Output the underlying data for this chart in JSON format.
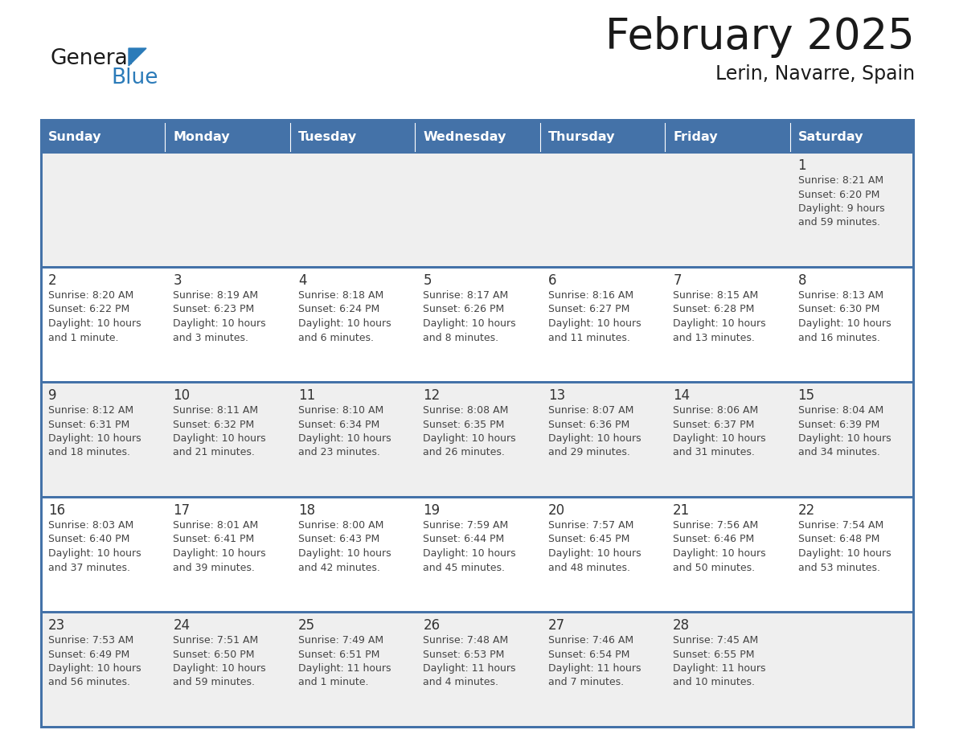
{
  "title": "February 2025",
  "subtitle": "Lerin, Navarre, Spain",
  "days_of_week": [
    "Sunday",
    "Monday",
    "Tuesday",
    "Wednesday",
    "Thursday",
    "Friday",
    "Saturday"
  ],
  "header_bg": "#4472A8",
  "header_text": "#FFFFFF",
  "cell_bg_light": "#EFEFEF",
  "cell_bg_white": "#FFFFFF",
  "cell_border_color": "#4472A8",
  "day_num_color": "#333333",
  "info_text_color": "#444444",
  "calendar_data": [
    [
      null,
      null,
      null,
      null,
      null,
      null,
      {
        "day": "1",
        "sunrise": "8:21 AM",
        "sunset": "6:20 PM",
        "daylight": "9 hours",
        "daylight2": "and 59 minutes."
      }
    ],
    [
      {
        "day": "2",
        "sunrise": "8:20 AM",
        "sunset": "6:22 PM",
        "daylight": "10 hours",
        "daylight2": "and 1 minute."
      },
      {
        "day": "3",
        "sunrise": "8:19 AM",
        "sunset": "6:23 PM",
        "daylight": "10 hours",
        "daylight2": "and 3 minutes."
      },
      {
        "day": "4",
        "sunrise": "8:18 AM",
        "sunset": "6:24 PM",
        "daylight": "10 hours",
        "daylight2": "and 6 minutes."
      },
      {
        "day": "5",
        "sunrise": "8:17 AM",
        "sunset": "6:26 PM",
        "daylight": "10 hours",
        "daylight2": "and 8 minutes."
      },
      {
        "day": "6",
        "sunrise": "8:16 AM",
        "sunset": "6:27 PM",
        "daylight": "10 hours",
        "daylight2": "and 11 minutes."
      },
      {
        "day": "7",
        "sunrise": "8:15 AM",
        "sunset": "6:28 PM",
        "daylight": "10 hours",
        "daylight2": "and 13 minutes."
      },
      {
        "day": "8",
        "sunrise": "8:13 AM",
        "sunset": "6:30 PM",
        "daylight": "10 hours",
        "daylight2": "and 16 minutes."
      }
    ],
    [
      {
        "day": "9",
        "sunrise": "8:12 AM",
        "sunset": "6:31 PM",
        "daylight": "10 hours",
        "daylight2": "and 18 minutes."
      },
      {
        "day": "10",
        "sunrise": "8:11 AM",
        "sunset": "6:32 PM",
        "daylight": "10 hours",
        "daylight2": "and 21 minutes."
      },
      {
        "day": "11",
        "sunrise": "8:10 AM",
        "sunset": "6:34 PM",
        "daylight": "10 hours",
        "daylight2": "and 23 minutes."
      },
      {
        "day": "12",
        "sunrise": "8:08 AM",
        "sunset": "6:35 PM",
        "daylight": "10 hours",
        "daylight2": "and 26 minutes."
      },
      {
        "day": "13",
        "sunrise": "8:07 AM",
        "sunset": "6:36 PM",
        "daylight": "10 hours",
        "daylight2": "and 29 minutes."
      },
      {
        "day": "14",
        "sunrise": "8:06 AM",
        "sunset": "6:37 PM",
        "daylight": "10 hours",
        "daylight2": "and 31 minutes."
      },
      {
        "day": "15",
        "sunrise": "8:04 AM",
        "sunset": "6:39 PM",
        "daylight": "10 hours",
        "daylight2": "and 34 minutes."
      }
    ],
    [
      {
        "day": "16",
        "sunrise": "8:03 AM",
        "sunset": "6:40 PM",
        "daylight": "10 hours",
        "daylight2": "and 37 minutes."
      },
      {
        "day": "17",
        "sunrise": "8:01 AM",
        "sunset": "6:41 PM",
        "daylight": "10 hours",
        "daylight2": "and 39 minutes."
      },
      {
        "day": "18",
        "sunrise": "8:00 AM",
        "sunset": "6:43 PM",
        "daylight": "10 hours",
        "daylight2": "and 42 minutes."
      },
      {
        "day": "19",
        "sunrise": "7:59 AM",
        "sunset": "6:44 PM",
        "daylight": "10 hours",
        "daylight2": "and 45 minutes."
      },
      {
        "day": "20",
        "sunrise": "7:57 AM",
        "sunset": "6:45 PM",
        "daylight": "10 hours",
        "daylight2": "and 48 minutes."
      },
      {
        "day": "21",
        "sunrise": "7:56 AM",
        "sunset": "6:46 PM",
        "daylight": "10 hours",
        "daylight2": "and 50 minutes."
      },
      {
        "day": "22",
        "sunrise": "7:54 AM",
        "sunset": "6:48 PM",
        "daylight": "10 hours",
        "daylight2": "and 53 minutes."
      }
    ],
    [
      {
        "day": "23",
        "sunrise": "7:53 AM",
        "sunset": "6:49 PM",
        "daylight": "10 hours",
        "daylight2": "and 56 minutes."
      },
      {
        "day": "24",
        "sunrise": "7:51 AM",
        "sunset": "6:50 PM",
        "daylight": "10 hours",
        "daylight2": "and 59 minutes."
      },
      {
        "day": "25",
        "sunrise": "7:49 AM",
        "sunset": "6:51 PM",
        "daylight": "11 hours",
        "daylight2": "and 1 minute."
      },
      {
        "day": "26",
        "sunrise": "7:48 AM",
        "sunset": "6:53 PM",
        "daylight": "11 hours",
        "daylight2": "and 4 minutes."
      },
      {
        "day": "27",
        "sunrise": "7:46 AM",
        "sunset": "6:54 PM",
        "daylight": "11 hours",
        "daylight2": "and 7 minutes."
      },
      {
        "day": "28",
        "sunrise": "7:45 AM",
        "sunset": "6:55 PM",
        "daylight": "11 hours",
        "daylight2": "and 10 minutes."
      },
      null
    ]
  ],
  "figsize": [
    11.88,
    9.18
  ],
  "dpi": 100
}
